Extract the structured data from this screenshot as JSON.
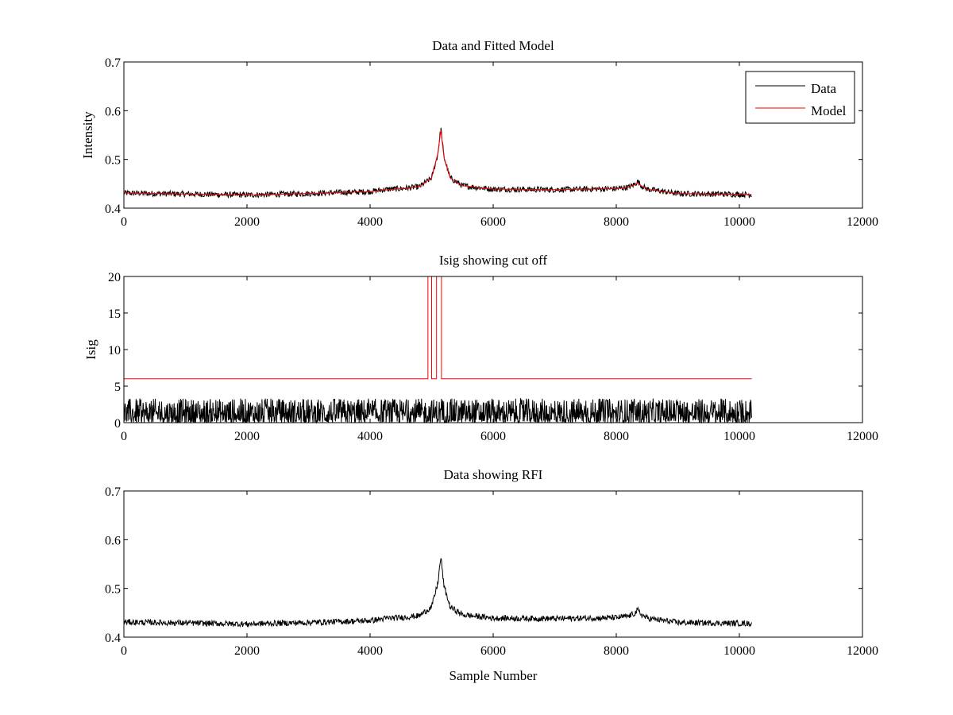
{
  "chart_data": [
    {
      "type": "line",
      "title": "Data and Fitted Model",
      "xlabel": "",
      "ylabel": "Intensity",
      "xlim": [
        0,
        12000
      ],
      "ylim": [
        0.4,
        0.7
      ],
      "xticks": [
        0,
        2000,
        4000,
        6000,
        8000,
        10000,
        12000
      ],
      "yticks": [
        0.4,
        0.5,
        0.6,
        0.7
      ],
      "xtick_labels": [
        "0",
        "2000",
        "4000",
        "6000",
        "8000",
        "10000",
        "12000"
      ],
      "ytick_labels": [
        "0.4",
        "0.5",
        "0.6",
        "0.7"
      ],
      "grid": false,
      "legend": {
        "position": "top-right",
        "entries": [
          {
            "label": "Data",
            "color": "#000000"
          },
          {
            "label": "Model",
            "color": "#ff0000"
          }
        ]
      },
      "series": [
        {
          "name": "Data",
          "color": "#000000",
          "noise_amplitude": 0.006,
          "x": [
            0,
            1000,
            2000,
            3000,
            4000,
            4300,
            4500,
            4800,
            5000,
            5100,
            5150,
            5200,
            5300,
            5500,
            6000,
            7000,
            8000,
            8200,
            8300,
            8350,
            8400,
            8500,
            9000,
            10200
          ],
          "y": [
            0.431,
            0.429,
            0.427,
            0.43,
            0.434,
            0.439,
            0.44,
            0.444,
            0.462,
            0.51,
            0.565,
            0.505,
            0.462,
            0.446,
            0.439,
            0.438,
            0.44,
            0.443,
            0.449,
            0.455,
            0.447,
            0.439,
            0.43,
            0.428
          ]
        },
        {
          "name": "Model",
          "color": "#ff0000",
          "x": [
            0,
            1000,
            2000,
            3000,
            4000,
            4300,
            4500,
            4800,
            5000,
            5100,
            5150,
            5200,
            5300,
            5500,
            6000,
            7000,
            8000,
            8200,
            8300,
            8350,
            8400,
            8500,
            9000,
            10200
          ],
          "y": [
            0.431,
            0.429,
            0.427,
            0.43,
            0.434,
            0.438,
            0.44,
            0.444,
            0.462,
            0.512,
            0.56,
            0.505,
            0.462,
            0.446,
            0.439,
            0.438,
            0.44,
            0.443,
            0.448,
            0.452,
            0.446,
            0.439,
            0.43,
            0.428
          ]
        }
      ]
    },
    {
      "type": "line",
      "title": "Isig showing cut off",
      "xlabel": "",
      "ylabel": "Isig",
      "xlim": [
        0,
        12000
      ],
      "ylim": [
        0,
        20
      ],
      "xticks": [
        0,
        2000,
        4000,
        6000,
        8000,
        10000,
        12000
      ],
      "yticks": [
        0,
        5,
        10,
        15,
        20
      ],
      "xtick_labels": [
        "0",
        "2000",
        "4000",
        "6000",
        "8000",
        "10000",
        "12000"
      ],
      "ytick_labels": [
        "0",
        "5",
        "10",
        "15",
        "20"
      ],
      "grid": false,
      "series": [
        {
          "name": "",
          "color": "#000000",
          "noise_range": [
            0,
            3.3
          ],
          "x": [
            0,
            10200
          ],
          "y": [
            1.0,
            1.0
          ]
        },
        {
          "name": "",
          "color": "#ff0000",
          "x": [
            0,
            4940,
            4940,
            5000,
            5000,
            5080,
            5080,
            5160,
            5160,
            10200
          ],
          "y": [
            6,
            6,
            20,
            20,
            6,
            6,
            20,
            20,
            6,
            6
          ]
        }
      ]
    },
    {
      "type": "line",
      "title": "Data showing RFI",
      "xlabel": "Sample Number",
      "ylabel": "",
      "xlim": [
        0,
        12000
      ],
      "ylim": [
        0.4,
        0.7
      ],
      "xticks": [
        0,
        2000,
        4000,
        6000,
        8000,
        10000,
        12000
      ],
      "yticks": [
        0.4,
        0.5,
        0.6,
        0.7
      ],
      "xtick_labels": [
        "0",
        "2000",
        "4000",
        "6000",
        "8000",
        "10000",
        "12000"
      ],
      "ytick_labels": [
        "0.4",
        "0.5",
        "0.6",
        "0.7"
      ],
      "grid": false,
      "series": [
        {
          "name": "",
          "color": "#000000",
          "noise_amplitude": 0.006,
          "x": [
            0,
            1000,
            2000,
            3000,
            4000,
            4300,
            4500,
            4800,
            5000,
            5100,
            5150,
            5200,
            5300,
            5500,
            6000,
            7000,
            8000,
            8200,
            8300,
            8350,
            8400,
            8500,
            9000,
            10200
          ],
          "y": [
            0.431,
            0.429,
            0.427,
            0.43,
            0.434,
            0.439,
            0.44,
            0.444,
            0.462,
            0.51,
            0.565,
            0.505,
            0.462,
            0.446,
            0.439,
            0.438,
            0.44,
            0.443,
            0.449,
            0.455,
            0.447,
            0.439,
            0.43,
            0.428
          ]
        }
      ]
    }
  ]
}
